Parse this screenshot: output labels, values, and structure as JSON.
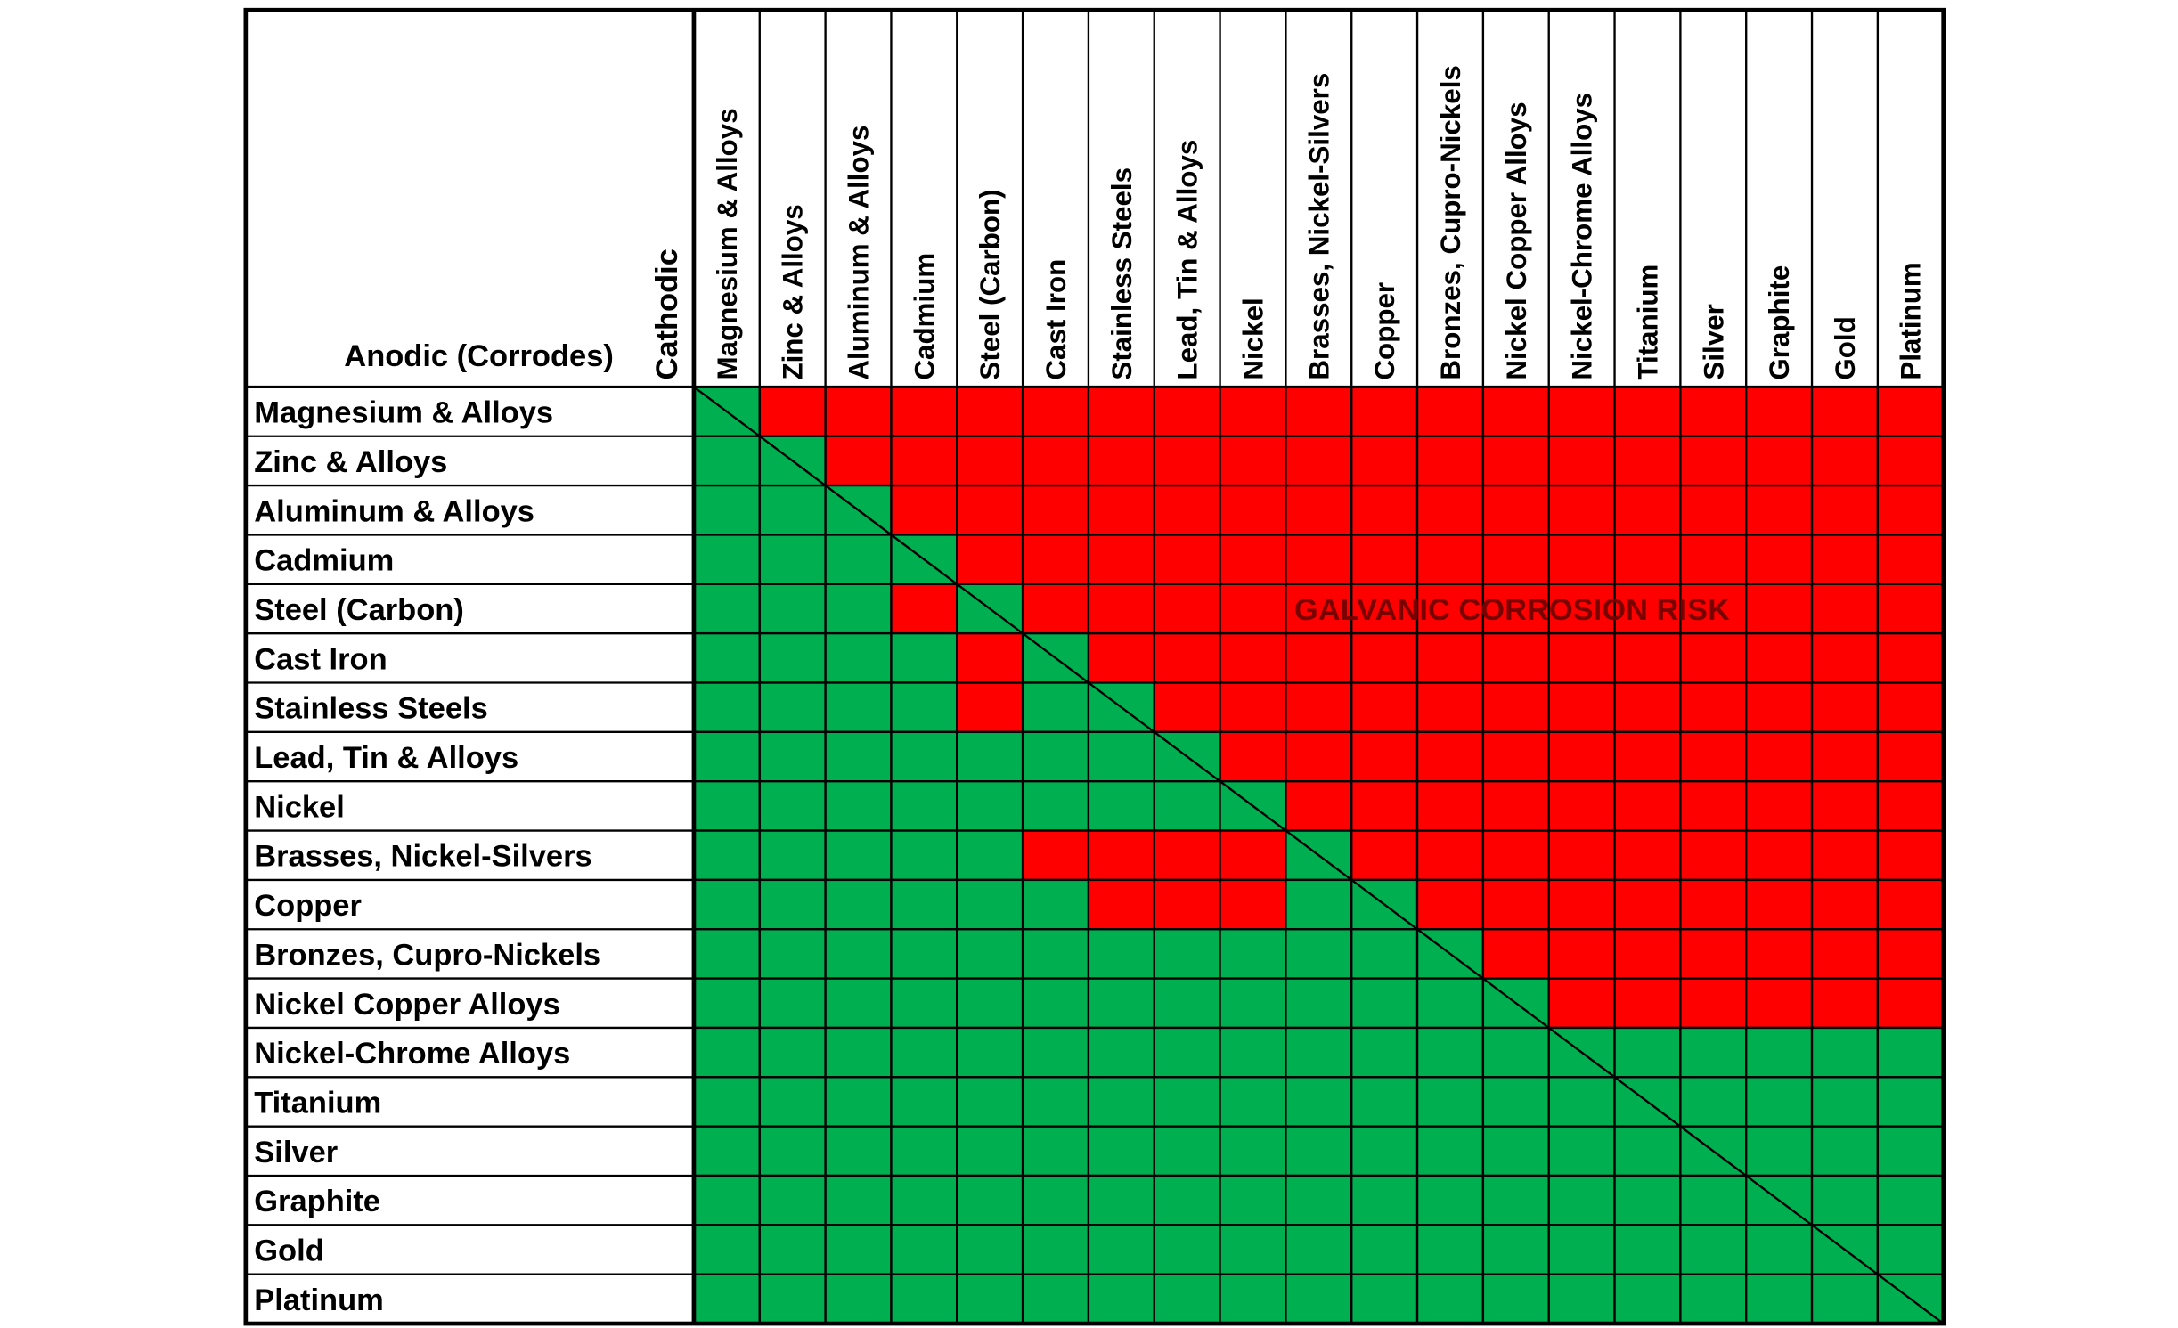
{
  "header": {
    "cathodic": "Cathodic",
    "anodic": "Anodic (Corrodes)"
  },
  "materials": [
    "Magnesium & Alloys",
    "Zinc & Alloys",
    "Aluminum & Alloys",
    "Cadmium",
    "Steel (Carbon)",
    "Cast Iron",
    "Stainless Steels",
    "Lead, Tin & Alloys",
    "Nickel",
    "Brasses, Nickel-Silvers",
    "Copper",
    "Bronzes, Cupro-Nickels",
    "Nickel Copper Alloys",
    "Nickel-Chrome Alloys",
    "Titanium",
    "Silver",
    "Graphite",
    "Gold",
    "Platinum"
  ],
  "risk": [
    [
      0,
      1,
      1,
      1,
      1,
      1,
      1,
      1,
      1,
      1,
      1,
      1,
      1,
      1,
      1,
      1,
      1,
      1,
      1
    ],
    [
      0,
      0,
      1,
      1,
      1,
      1,
      1,
      1,
      1,
      1,
      1,
      1,
      1,
      1,
      1,
      1,
      1,
      1,
      1
    ],
    [
      0,
      0,
      0,
      1,
      1,
      1,
      1,
      1,
      1,
      1,
      1,
      1,
      1,
      1,
      1,
      1,
      1,
      1,
      1
    ],
    [
      0,
      0,
      0,
      0,
      1,
      1,
      1,
      1,
      1,
      1,
      1,
      1,
      1,
      1,
      1,
      1,
      1,
      1,
      1
    ],
    [
      0,
      0,
      0,
      1,
      0,
      1,
      1,
      1,
      1,
      1,
      1,
      1,
      1,
      1,
      1,
      1,
      1,
      1,
      1
    ],
    [
      0,
      0,
      0,
      0,
      1,
      0,
      1,
      1,
      1,
      1,
      1,
      1,
      1,
      1,
      1,
      1,
      1,
      1,
      1
    ],
    [
      0,
      0,
      0,
      0,
      1,
      0,
      0,
      1,
      1,
      1,
      1,
      1,
      1,
      1,
      1,
      1,
      1,
      1,
      1
    ],
    [
      0,
      0,
      0,
      0,
      0,
      0,
      0,
      0,
      1,
      1,
      1,
      1,
      1,
      1,
      1,
      1,
      1,
      1,
      1
    ],
    [
      0,
      0,
      0,
      0,
      0,
      0,
      0,
      0,
      0,
      1,
      1,
      1,
      1,
      1,
      1,
      1,
      1,
      1,
      1
    ],
    [
      0,
      0,
      0,
      0,
      0,
      1,
      1,
      1,
      1,
      0,
      1,
      1,
      1,
      1,
      1,
      1,
      1,
      1,
      1
    ],
    [
      0,
      0,
      0,
      0,
      0,
      0,
      1,
      1,
      1,
      0,
      0,
      1,
      1,
      1,
      1,
      1,
      1,
      1,
      1
    ],
    [
      0,
      0,
      0,
      0,
      0,
      0,
      0,
      0,
      0,
      0,
      0,
      0,
      1,
      1,
      1,
      1,
      1,
      1,
      1
    ],
    [
      0,
      0,
      0,
      0,
      0,
      0,
      0,
      0,
      0,
      0,
      0,
      0,
      0,
      1,
      1,
      1,
      1,
      1,
      1
    ],
    [
      0,
      0,
      0,
      0,
      0,
      0,
      0,
      0,
      0,
      0,
      0,
      0,
      0,
      0,
      0,
      0,
      0,
      0,
      0
    ],
    [
      0,
      0,
      0,
      0,
      0,
      0,
      0,
      0,
      0,
      0,
      0,
      0,
      0,
      0,
      0,
      0,
      0,
      0,
      0
    ],
    [
      0,
      0,
      0,
      0,
      0,
      0,
      0,
      0,
      0,
      0,
      0,
      0,
      0,
      0,
      0,
      0,
      0,
      0,
      0
    ],
    [
      0,
      0,
      0,
      0,
      0,
      0,
      0,
      0,
      0,
      0,
      0,
      0,
      0,
      0,
      0,
      0,
      0,
      0,
      0
    ],
    [
      0,
      0,
      0,
      0,
      0,
      0,
      0,
      0,
      0,
      0,
      0,
      0,
      0,
      0,
      0,
      0,
      0,
      0,
      0
    ],
    [
      0,
      0,
      0,
      0,
      0,
      0,
      0,
      0,
      0,
      0,
      0,
      0,
      0,
      0,
      0,
      0,
      0,
      0,
      0
    ]
  ],
  "annotation": "GALVANIC CORROSION RISK",
  "colors": {
    "risk": "#ff0000",
    "safe": "#00b050"
  }
}
